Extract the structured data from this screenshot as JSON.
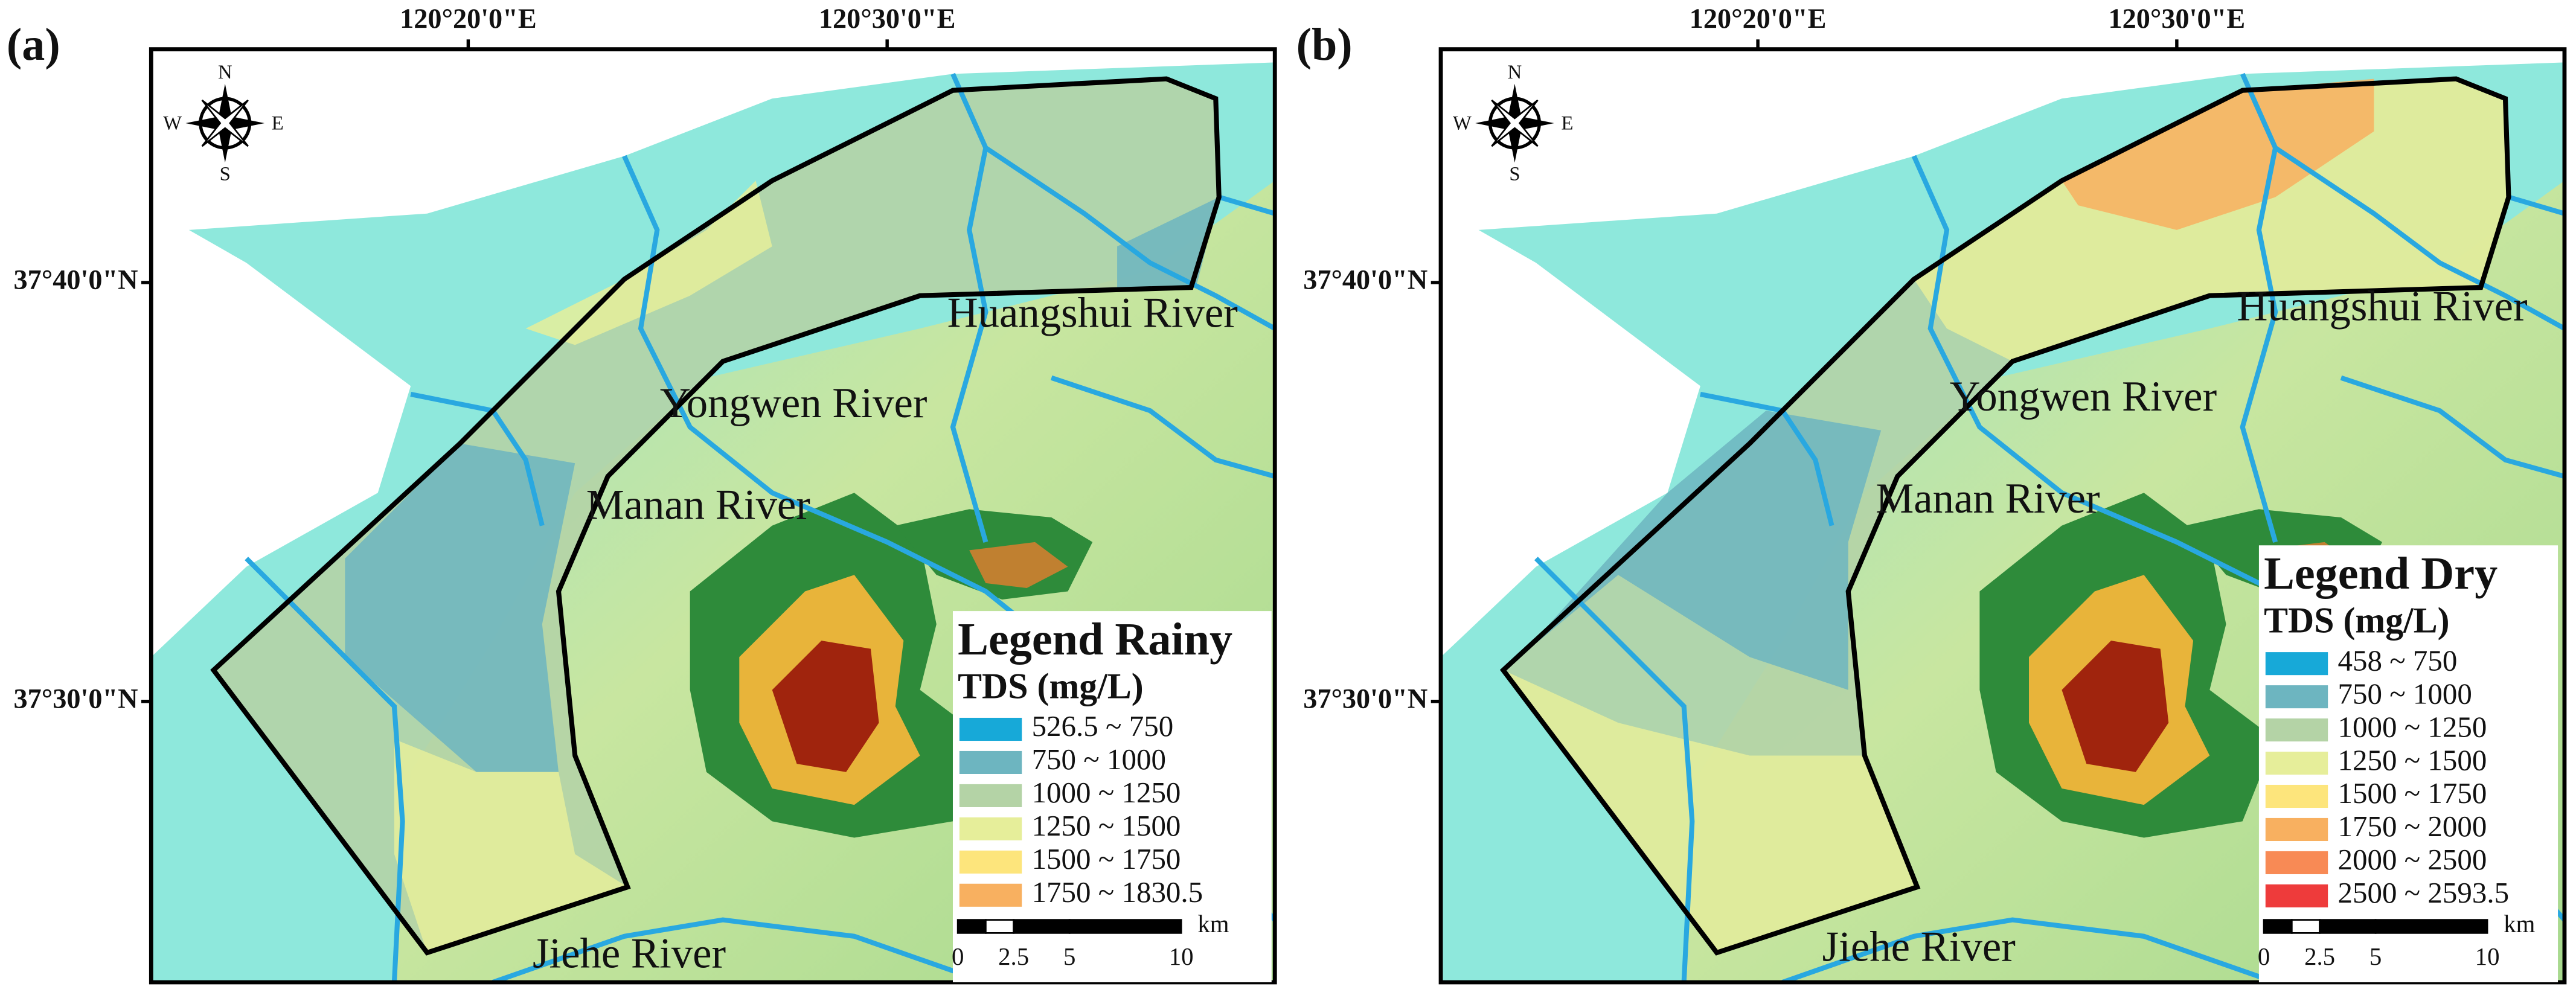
{
  "panels": [
    {
      "label": "(a)",
      "lon_ticks": [
        "120°20'0\"E",
        "120°30'0\"E"
      ],
      "lat_ticks": [
        "37°40'0\"N",
        "37°30'0\"N"
      ],
      "compass": {
        "n": "N",
        "s": "S",
        "e": "E",
        "w": "W"
      },
      "rivers": [
        "Huangshui River",
        "Yongwen River",
        "Manan River",
        "Jiehe River"
      ],
      "legend": {
        "title": "Legend Rainy",
        "subtitle": "TDS (mg/L)",
        "items": [
          {
            "label": "526.5 ~ 750",
            "color": "#17a9d8"
          },
          {
            "label": "750 ~ 1000",
            "color": "#6db5c0"
          },
          {
            "label": "1000 ~ 1250",
            "color": "#b4d3a6"
          },
          {
            "label": "1250 ~ 1500",
            "color": "#e6ee9a"
          },
          {
            "label": "1500 ~ 1750",
            "color": "#fde57c"
          },
          {
            "label": "1750 ~ 1830.5",
            "color": "#f8b060"
          }
        ],
        "scale_bar": {
          "ticks": [
            "0",
            "2.5",
            "5",
            "10"
          ],
          "unit": "km"
        }
      }
    },
    {
      "label": "(b)",
      "lon_ticks": [
        "120°20'0\"E",
        "120°30'0\"E"
      ],
      "lat_ticks": [
        "37°40'0\"N",
        "37°30'0\"N"
      ],
      "compass": {
        "n": "N",
        "s": "S",
        "e": "E",
        "w": "W"
      },
      "rivers": [
        "Huangshui River",
        "Yongwen River",
        "Manan River",
        "Jiehe River"
      ],
      "legend": {
        "title": "Legend Dry",
        "subtitle": "TDS (mg/L)",
        "items": [
          {
            "label": "458 ~ 750",
            "color": "#17a9d8"
          },
          {
            "label": "750 ~ 1000",
            "color": "#6db5c0"
          },
          {
            "label": "1000 ~ 1250",
            "color": "#b4d3a6"
          },
          {
            "label": "1250 ~ 1500",
            "color": "#e6ee9a"
          },
          {
            "label": "1500 ~ 1750",
            "color": "#fde57c"
          },
          {
            "label": "1750 ~ 2000",
            "color": "#f8b060"
          },
          {
            "label": "2000 ~ 2500",
            "color": "#f88a55"
          },
          {
            "label": "2500 ~ 2593.5",
            "color": "#ee3b3b"
          }
        ],
        "scale_bar": {
          "ticks": [
            "0",
            "2.5",
            "5",
            "10"
          ],
          "unit": "km"
        }
      }
    }
  ]
}
